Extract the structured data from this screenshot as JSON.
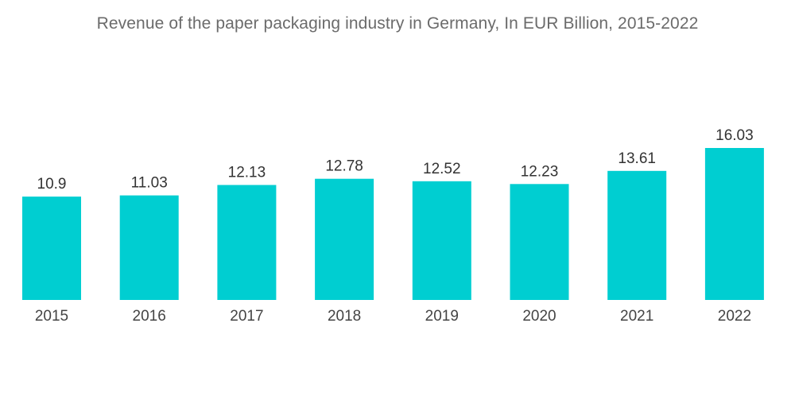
{
  "chart_data": {
    "type": "bar",
    "title": "Revenue of the paper packaging industry in Germany, In EUR Billion, 2015-2022",
    "xlabel": "",
    "ylabel": "",
    "categories": [
      "2015",
      "2016",
      "2017",
      "2018",
      "2019",
      "2020",
      "2021",
      "2022"
    ],
    "values": [
      10.9,
      11.03,
      12.13,
      12.78,
      12.52,
      12.23,
      13.61,
      16.03
    ],
    "value_labels": [
      "10.9",
      "11.03",
      "12.13",
      "12.78",
      "12.52",
      "12.23",
      "13.61",
      "16.03"
    ],
    "ylim": [
      0,
      16.03
    ],
    "grid": false,
    "legend": "none",
    "colors": {
      "bar": "#00CED1",
      "title": "#6b6b6b",
      "label": "#333333"
    }
  }
}
